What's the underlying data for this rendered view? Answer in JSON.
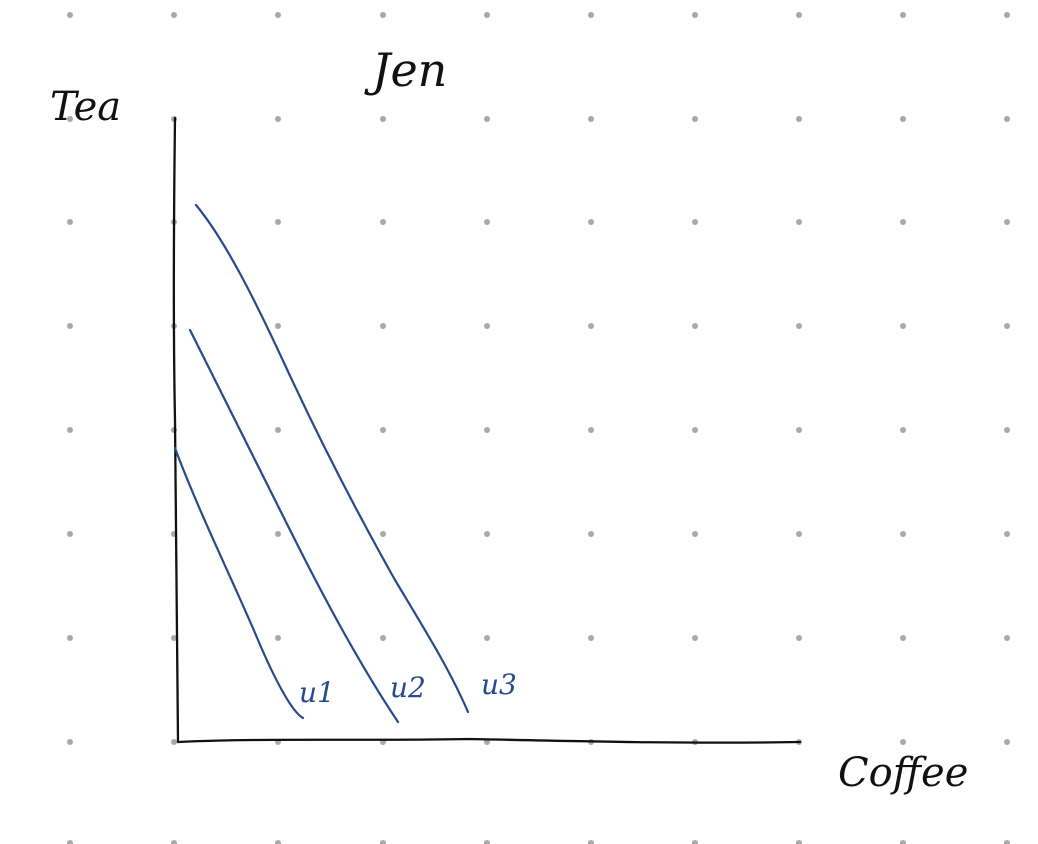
{
  "diagram": {
    "title": "Jen",
    "axes": {
      "y_label": "Tea",
      "x_label": "Coffee"
    },
    "curves": [
      {
        "label": "u1"
      },
      {
        "label": "u2"
      },
      {
        "label": "u3"
      }
    ],
    "colors": {
      "background": "#ffffff",
      "grid_dots": "#a9a9a9",
      "axes": "#111111",
      "curves": "#274a8e"
    }
  }
}
